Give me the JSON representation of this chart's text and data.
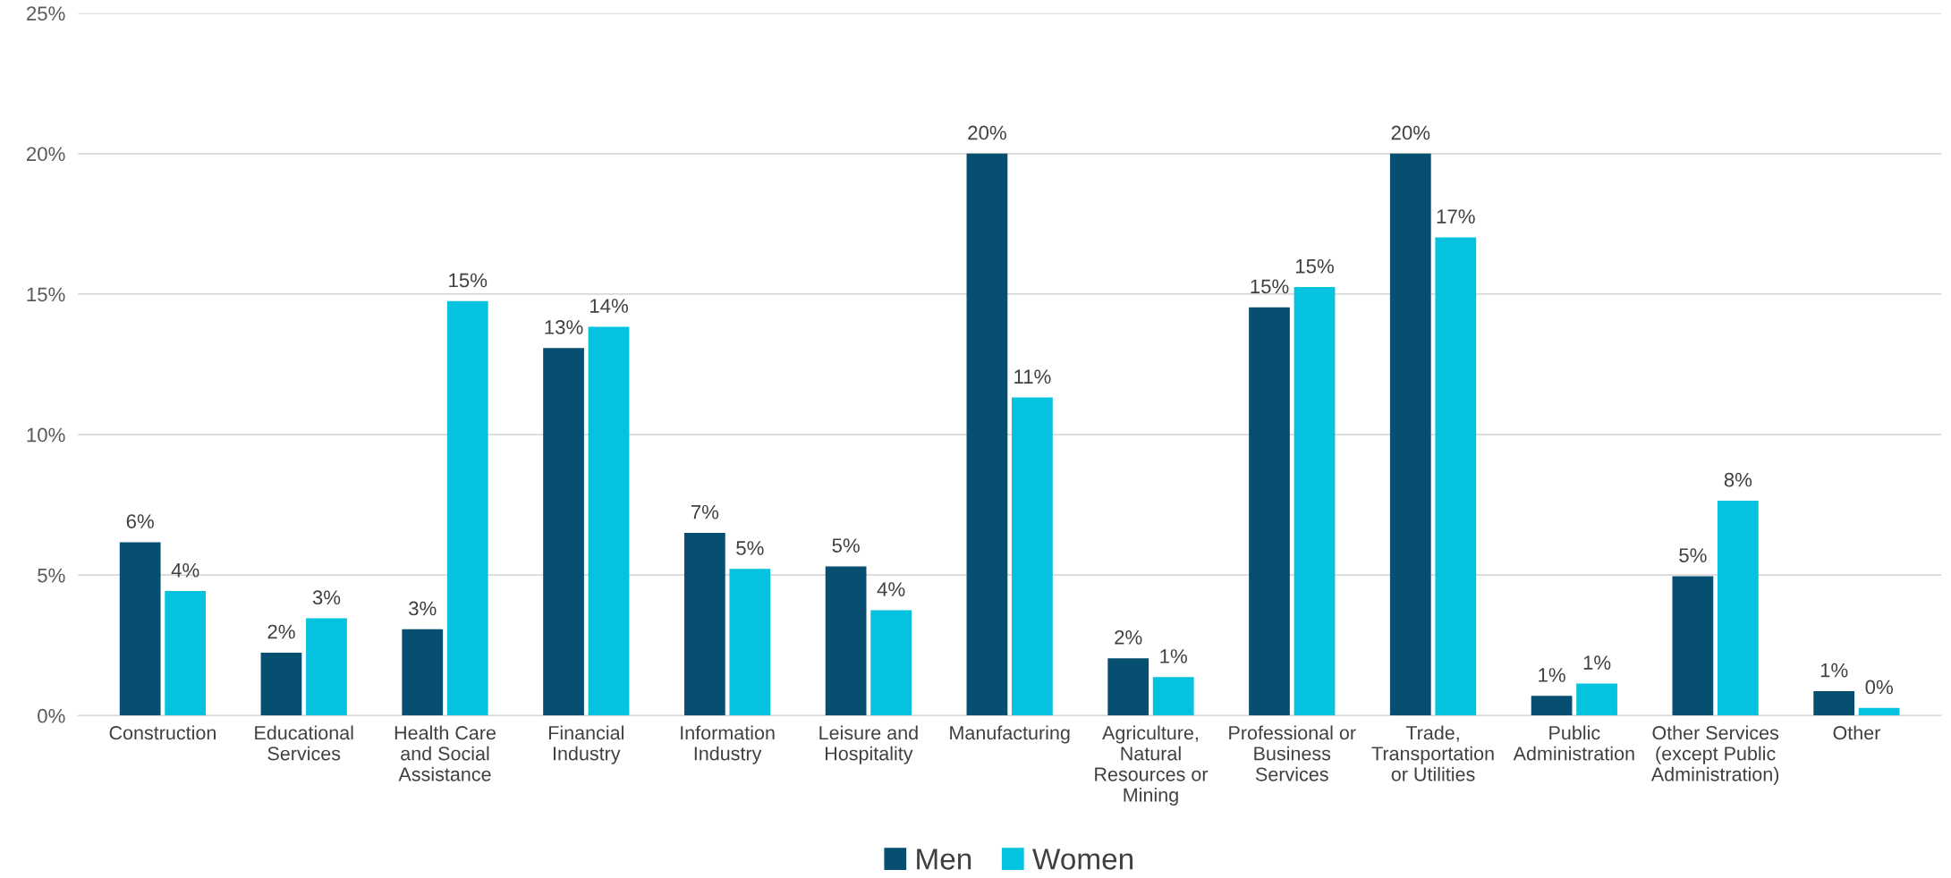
{
  "chart_data": {
    "type": "bar",
    "categories": [
      "Construction",
      "Educational\nServices",
      "Health Care\nand Social\nAssistance",
      "Financial\nIndustry",
      "Information\nIndustry",
      "Leisure and\nHospitality",
      "Manufacturing",
      "Agriculture,\nNatural\nResources or\nMining",
      "Professional or\nBusiness\nServices",
      "Trade,\nTransportation\nor Utilities",
      "Public\nAdministration",
      "Other Services\n(except Public\nAdministration)",
      "Other"
    ],
    "series": [
      {
        "name": "Men",
        "color": "#074f71",
        "values": [
          6.17,
          2.24,
          3.07,
          13.08,
          6.5,
          5.31,
          20.0,
          2.04,
          14.53,
          20.0,
          0.7,
          4.96,
          0.87
        ],
        "value_labels": [
          "6%",
          "2%",
          "3%",
          "13%",
          "7%",
          "5%",
          "20%",
          "2%",
          "15%",
          "20%",
          "1%",
          "5%",
          "1%"
        ]
      },
      {
        "name": "Women",
        "color": "#05c3de",
        "values": [
          4.43,
          3.46,
          14.75,
          13.84,
          5.22,
          3.75,
          11.32,
          1.37,
          15.25,
          17.02,
          1.14,
          7.65,
          0.27
        ],
        "value_labels": [
          "4%",
          "3%",
          "15%",
          "14%",
          "5%",
          "4%",
          "11%",
          "1%",
          "15%",
          "17%",
          "1%",
          "8%",
          "0%"
        ]
      }
    ],
    "ylim": [
      0,
      25
    ],
    "yticks": [
      {
        "value": 0,
        "label": "0%"
      },
      {
        "value": 5,
        "label": "5%"
      },
      {
        "value": 10,
        "label": "10%"
      },
      {
        "value": 15,
        "label": "15%"
      },
      {
        "value": 20,
        "label": "20%"
      },
      {
        "value": 25,
        "label": "25%"
      }
    ],
    "grid": "y",
    "legend": "bottom"
  }
}
